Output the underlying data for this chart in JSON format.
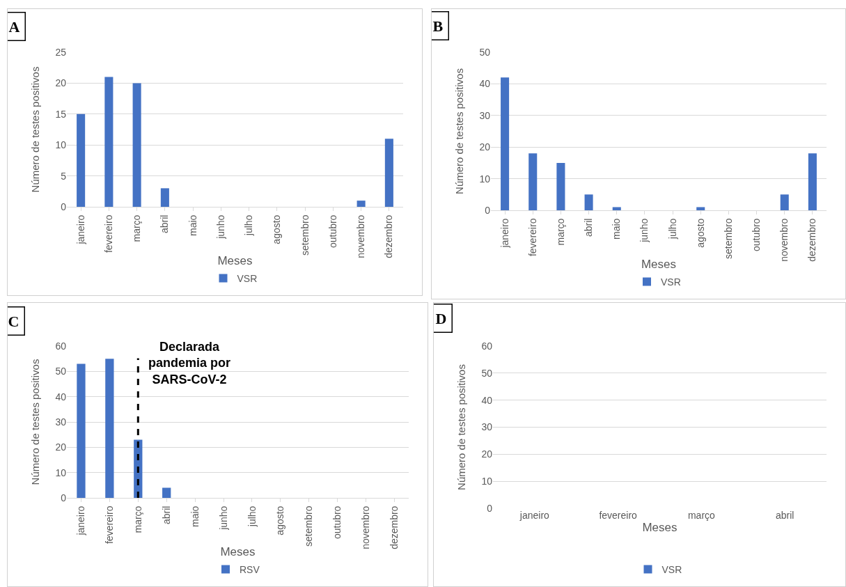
{
  "chart_data": [
    {
      "type": "bar",
      "title": "A",
      "xlabel": "Meses",
      "ylabel": "Número de testes positivos",
      "categories": [
        "janeiro",
        "fevereiro",
        "março",
        "abril",
        "maio",
        "junho",
        "julho",
        "agosto",
        "setembro",
        "outubro",
        "novembro",
        "dezembro"
      ],
      "series": [
        {
          "name": "VSR",
          "color": "#4472c4",
          "values": [
            15,
            21,
            20,
            3,
            0,
            0,
            0,
            0,
            0,
            0,
            1,
            11
          ]
        }
      ],
      "ylim": [
        0,
        25
      ],
      "yticks": [
        0,
        5,
        10,
        15,
        20,
        25
      ],
      "grid": "y",
      "legend": "bottom"
    },
    {
      "type": "bar",
      "title": "B",
      "xlabel": "Meses",
      "ylabel": "Número de testes positivos",
      "categories": [
        "janeiro",
        "fevereiro",
        "março",
        "abril",
        "maio",
        "junho",
        "julho",
        "agosto",
        "setembro",
        "outubro",
        "novembro",
        "dezembro"
      ],
      "series": [
        {
          "name": "VSR",
          "color": "#4472c4",
          "values": [
            42,
            18,
            15,
            5,
            1,
            0,
            0,
            1,
            0,
            0,
            5,
            18
          ]
        }
      ],
      "ylim": [
        0,
        50
      ],
      "yticks": [
        0,
        10,
        20,
        30,
        40,
        50
      ],
      "grid": "y",
      "legend": "bottom"
    },
    {
      "type": "bar",
      "title": "C",
      "xlabel": "Meses",
      "ylabel": "Número de testes positivos",
      "categories": [
        "janeiro",
        "fevereiro",
        "março",
        "abril",
        "maio",
        "junho",
        "julho",
        "agosto",
        "setembro",
        "outubro",
        "novembro",
        "dezembro"
      ],
      "series": [
        {
          "name": "RSV",
          "color": "#4472c4",
          "values": [
            53,
            55,
            23,
            4,
            0,
            0,
            0,
            0,
            0,
            0,
            0,
            0
          ]
        }
      ],
      "ylim": [
        0,
        60
      ],
      "yticks": [
        0,
        10,
        20,
        30,
        40,
        50,
        60
      ],
      "grid": "y",
      "legend": "bottom",
      "ref_lines": [
        {
          "axis": "x",
          "value": "março",
          "label": "Declarada\npandemia por\nSARS-CoV-2",
          "color": "#000000",
          "line_style": "dashed"
        }
      ]
    },
    {
      "type": "bar",
      "title": "D",
      "xlabel": "Meses",
      "ylabel": "Número de testes positivos",
      "categories": [
        "janeiro",
        "fevereiro",
        "março",
        "abril"
      ],
      "series": [
        {
          "name": "VSR",
          "color": "#4472c4",
          "values": [
            0,
            0,
            0,
            0
          ]
        }
      ],
      "ylim": [
        0,
        60
      ],
      "yticks": [
        0,
        10,
        20,
        30,
        40,
        50,
        60
      ],
      "grid": "y",
      "legend": "bottom"
    }
  ]
}
